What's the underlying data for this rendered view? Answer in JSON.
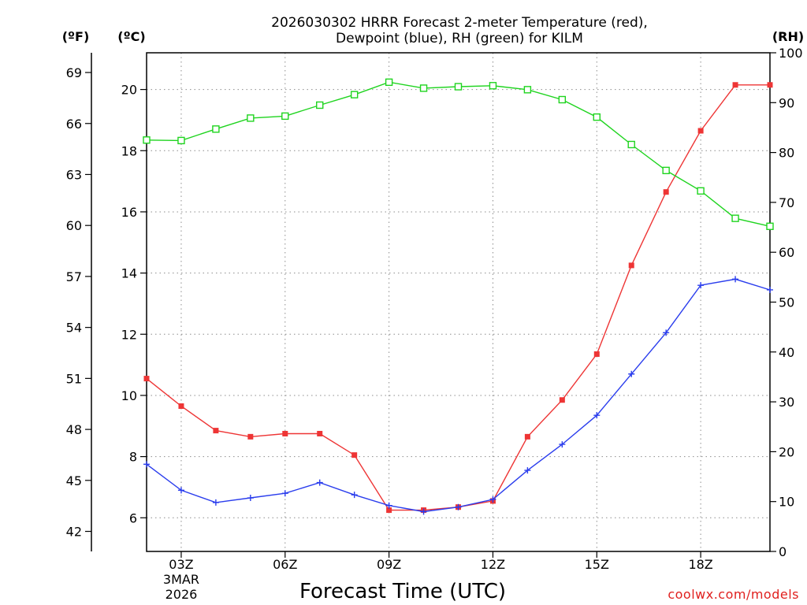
{
  "chart_data": {
    "type": "line",
    "title_lines": [
      "2026030302 HRRR Forecast 2-meter Temperature (red),",
      "Dewpoint (blue), RH (green) for KILM"
    ],
    "xlabel": "Forecast Time (UTC)",
    "credit": "coolwx.com/models",
    "units": {
      "left_outer": "(ºF)",
      "left_inner": "(ºC)",
      "right": "(RH)"
    },
    "x": [
      2,
      3,
      4,
      5,
      6,
      7,
      8,
      9,
      10,
      11,
      12,
      13,
      14,
      15,
      16,
      17,
      18,
      19,
      20
    ],
    "xlim": [
      2,
      20
    ],
    "x_ticks": [
      {
        "x": 3,
        "label": "03Z",
        "sub": [
          "3MAR",
          "2026"
        ]
      },
      {
        "x": 6,
        "label": "06Z",
        "sub": []
      },
      {
        "x": 9,
        "label": "09Z",
        "sub": []
      },
      {
        "x": 12,
        "label": "12Z",
        "sub": []
      },
      {
        "x": 15,
        "label": "15Z",
        "sub": []
      },
      {
        "x": 18,
        "label": "18Z",
        "sub": []
      }
    ],
    "ylim_c": [
      4.9,
      21.2
    ],
    "ylim_rh": [
      0,
      100
    ],
    "yticks_c": [
      6,
      8,
      10,
      12,
      14,
      16,
      18,
      20
    ],
    "yticks_f": [
      42,
      45,
      48,
      51,
      54,
      57,
      60,
      63,
      66,
      69
    ],
    "yticks_rh": [
      0,
      10,
      20,
      30,
      40,
      50,
      60,
      70,
      80,
      90,
      100
    ],
    "series": [
      {
        "name": "Temperature",
        "axis": "c",
        "color": "#ee3535",
        "marker": "filled-square",
        "values": [
          10.55,
          9.65,
          8.85,
          8.65,
          8.75,
          8.75,
          8.05,
          6.25,
          6.25,
          6.35,
          6.55,
          8.65,
          9.85,
          11.35,
          14.25,
          16.65,
          18.65,
          20.15,
          20.15
        ]
      },
      {
        "name": "Dewpoint",
        "axis": "c",
        "color": "#2a3ded",
        "marker": "plus",
        "values": [
          7.75,
          6.9,
          6.5,
          6.65,
          6.8,
          7.15,
          6.75,
          6.4,
          6.2,
          6.35,
          6.6,
          7.55,
          8.4,
          9.35,
          10.7,
          12.05,
          13.6,
          13.8,
          13.45
        ]
      },
      {
        "name": "RH",
        "axis": "rh",
        "color": "#1fd41f",
        "marker": "open-square",
        "values": [
          82.5,
          82.4,
          84.7,
          86.9,
          87.3,
          89.5,
          91.6,
          94.1,
          92.9,
          93.2,
          93.4,
          92.6,
          90.6,
          87.1,
          81.6,
          76.4,
          72.3,
          66.8,
          65.2
        ]
      }
    ]
  }
}
